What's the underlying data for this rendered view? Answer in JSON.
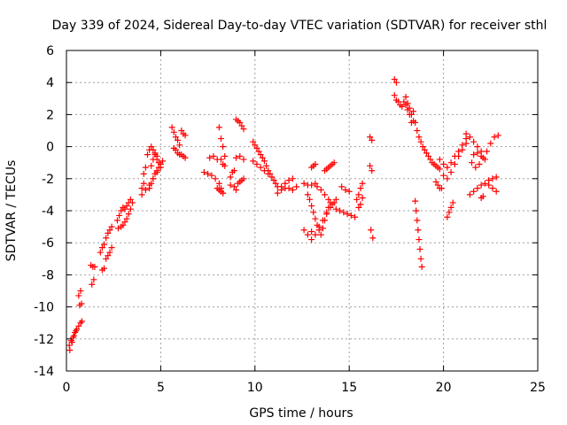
{
  "chart_data": {
    "type": "scatter",
    "title": "Day 339 of 2024, Sidereal Day-to-day VTEC variation (SDTVAR) for receiver sthl",
    "xlabel": "GPS time / hours",
    "ylabel": "SDTVAR / TECUs",
    "xlim": [
      0,
      25
    ],
    "ylim": [
      -14,
      6
    ],
    "xticks": [
      0,
      5,
      10,
      15,
      20,
      25
    ],
    "yticks": [
      -14,
      -12,
      -10,
      -8,
      -6,
      -4,
      -2,
      0,
      2,
      4,
      6
    ],
    "grid": true,
    "marker": "+",
    "color": "#ff0000",
    "series": [
      {
        "name": "SDTVAR",
        "segments": [
          {
            "x": [
              0.15,
              0.25,
              0.35,
              0.45,
              0.55,
              0.65,
              0.75,
              0.82
            ],
            "y": [
              -12.4,
              -12.1,
              -11.9,
              -11.6,
              -11.4,
              -11.2,
              -11.0,
              -10.9
            ]
          },
          {
            "x": [
              0.18,
              0.3,
              0.4,
              0.5
            ],
            "y": [
              -12.7,
              -12.2,
              -11.8,
              -11.5
            ]
          },
          {
            "x": [
              0.65,
              0.75
            ],
            "y": [
              -9.3,
              -9.0
            ]
          },
          {
            "x": [
              0.7,
              0.8
            ],
            "y": [
              -9.9,
              -9.8
            ]
          },
          {
            "x": [
              1.3,
              1.4,
              1.5
            ],
            "y": [
              -7.4,
              -7.5,
              -7.5
            ]
          },
          {
            "x": [
              1.35,
              1.45
            ],
            "y": [
              -8.6,
              -8.3
            ]
          },
          {
            "x": [
              1.8,
              1.9,
              2.0
            ],
            "y": [
              -6.6,
              -6.3,
              -6.1
            ]
          },
          {
            "x": [
              1.9,
              2.0
            ],
            "y": [
              -7.7,
              -7.6
            ]
          },
          {
            "x": [
              2.1,
              2.2,
              2.3,
              2.4
            ],
            "y": [
              -7.0,
              -6.8,
              -6.6,
              -6.3
            ]
          },
          {
            "x": [
              2.1,
              2.2,
              2.3,
              2.4
            ],
            "y": [
              -5.7,
              -5.4,
              -5.2,
              -5.0
            ]
          },
          {
            "x": [
              2.7,
              2.8,
              2.9,
              3.0
            ],
            "y": [
              -4.6,
              -4.3,
              -4.0,
              -3.8
            ]
          },
          {
            "x": [
              2.75,
              2.9,
              3.0,
              3.1,
              3.2,
              3.3,
              3.4,
              3.5
            ],
            "y": [
              -5.1,
              -5.0,
              -4.9,
              -4.7,
              -4.5,
              -4.2,
              -3.9,
              -3.5
            ]
          },
          {
            "x": [
              3.1,
              3.2,
              3.3,
              3.4
            ],
            "y": [
              -3.9,
              -3.7,
              -3.5,
              -3.3
            ]
          },
          {
            "x": [
              4.0,
              4.1,
              4.1,
              4.2
            ],
            "y": [
              -2.6,
              -2.3,
              -1.7,
              -1.3
            ]
          },
          {
            "x": [
              4.0,
              4.2,
              4.4,
              4.6,
              4.8
            ],
            "y": [
              -3.0,
              -2.7,
              -2.4,
              -2.0,
              -1.6
            ]
          },
          {
            "x": [
              4.3,
              4.4,
              4.5,
              4.6,
              4.7,
              4.8
            ],
            "y": [
              -0.5,
              -0.2,
              0.0,
              -0.2,
              -0.4,
              -0.6
            ]
          },
          {
            "x": [
              4.5,
              4.6,
              4.7,
              4.8,
              4.9,
              5.0
            ],
            "y": [
              -1.2,
              -0.8,
              -0.5,
              -0.8,
              -1.0,
              -1.3
            ]
          },
          {
            "x": [
              4.4,
              4.5,
              4.6,
              4.7,
              4.8,
              4.9,
              5.0,
              5.1
            ],
            "y": [
              -2.6,
              -2.3,
              -2.0,
              -1.7,
              -1.5,
              -1.3,
              -1.1,
              -0.9
            ]
          },
          {
            "x": [
              5.6,
              5.7,
              5.8,
              5.9,
              6.0
            ],
            "y": [
              1.2,
              0.9,
              0.6,
              0.4,
              0.1
            ]
          },
          {
            "x": [
              5.7,
              5.8,
              5.9,
              6.0,
              6.1,
              6.2,
              6.3
            ],
            "y": [
              -0.1,
              -0.2,
              -0.4,
              -0.5,
              -0.5,
              -0.6,
              -0.7
            ]
          },
          {
            "x": [
              6.1,
              6.2,
              6.3
            ],
            "y": [
              1.0,
              0.8,
              0.7
            ]
          },
          {
            "x": [
              7.3,
              7.5,
              7.7,
              7.9
            ],
            "y": [
              -1.6,
              -1.7,
              -1.8,
              -2.0
            ]
          },
          {
            "x": [
              7.6,
              7.8,
              8.0
            ],
            "y": [
              -0.7,
              -0.6,
              -0.8
            ]
          },
          {
            "x": [
              8.0,
              8.1,
              8.2,
              8.3
            ],
            "y": [
              -2.6,
              -2.7,
              -2.8,
              -2.9
            ]
          },
          {
            "x": [
              8.1,
              8.2,
              8.3
            ],
            "y": [
              -2.3,
              -2.6,
              -2.9
            ]
          },
          {
            "x": [
              8.1,
              8.2,
              8.3,
              8.4
            ],
            "y": [
              1.2,
              0.5,
              0.0,
              -0.6
            ]
          },
          {
            "x": [
              8.2,
              8.3,
              8.4
            ],
            "y": [
              -0.8,
              -1.1,
              -1.2
            ]
          },
          {
            "x": [
              8.7,
              8.9,
              9.0
            ],
            "y": [
              -2.4,
              -2.5,
              -2.7
            ]
          },
          {
            "x": [
              8.7,
              8.8,
              8.9
            ],
            "y": [
              -1.9,
              -1.6,
              -1.5
            ]
          },
          {
            "x": [
              9.0,
              9.2,
              9.4
            ],
            "y": [
              -0.7,
              -0.6,
              -0.8
            ]
          },
          {
            "x": [
              9.0,
              9.1,
              9.2,
              9.3,
              9.4
            ],
            "y": [
              1.7,
              1.6,
              1.5,
              1.3,
              1.1
            ]
          },
          {
            "x": [
              9.1,
              9.2,
              9.3,
              9.4
            ],
            "y": [
              -2.3,
              -2.2,
              -2.1,
              -2.0
            ]
          },
          {
            "x": [
              9.9,
              10.0,
              10.1,
              10.2,
              10.3,
              10.4,
              10.5,
              10.6,
              10.7,
              10.8,
              10.9,
              11.0,
              11.1,
              11.2
            ],
            "y": [
              0.3,
              0.1,
              -0.1,
              -0.3,
              -0.5,
              -0.7,
              -0.9,
              -1.2,
              -1.5,
              -1.7,
              -1.9,
              -2.1,
              -2.3,
              -2.5
            ]
          },
          {
            "x": [
              9.9,
              10.1,
              10.3,
              10.5,
              10.7
            ],
            "y": [
              -0.9,
              -1.1,
              -1.3,
              -1.5,
              -1.7
            ]
          },
          {
            "x": [
              11.2,
              11.4,
              11.6,
              11.8,
              12.0,
              12.2
            ],
            "y": [
              -2.9,
              -2.7,
              -2.6,
              -2.6,
              -2.7,
              -2.5
            ]
          },
          {
            "x": [
              11.4,
              11.6,
              11.8,
              12.0
            ],
            "y": [
              -2.5,
              -2.3,
              -2.1,
              -2.0
            ]
          },
          {
            "x": [
              12.6,
              12.8,
              13.0,
              13.2
            ],
            "y": [
              -2.3,
              -2.4,
              -2.4,
              -2.3
            ]
          },
          {
            "x": [
              12.6,
              12.8,
              13.0
            ],
            "y": [
              -5.2,
              -5.5,
              -5.3
            ]
          },
          {
            "x": [
              12.8,
              12.9,
              13.0,
              13.1,
              13.2,
              13.3,
              13.4,
              13.5,
              13.6,
              13.7,
              13.8,
              13.9,
              14.0
            ],
            "y": [
              -3.0,
              -3.3,
              -3.7,
              -4.1,
              -4.5,
              -4.9,
              -5.2,
              -5.5,
              -5.1,
              -4.6,
              -4.2,
              -3.8,
              -3.5
            ]
          },
          {
            "x": [
              13.0,
              13.2,
              13.4,
              13.6,
              13.8,
              14.0,
              14.2,
              14.3
            ],
            "y": [
              -5.8,
              -5.5,
              -5.0,
              -4.6,
              -4.1,
              -3.8,
              -3.5,
              -3.3
            ]
          },
          {
            "x": [
              13.3,
              13.5,
              13.7,
              13.9,
              14.1,
              14.3
            ],
            "y": [
              -2.5,
              -2.7,
              -3.0,
              -3.3,
              -3.6,
              -3.9
            ]
          },
          {
            "x": [
              13.7,
              13.8,
              13.9,
              14.0,
              14.1,
              14.2
            ],
            "y": [
              -1.5,
              -1.4,
              -1.3,
              -1.2,
              -1.1,
              -1.0
            ]
          },
          {
            "x": [
              13.0,
              13.1,
              13.2
            ],
            "y": [
              -1.3,
              -1.2,
              -1.1
            ]
          },
          {
            "x": [
              14.5,
              14.7,
              14.9,
              15.1,
              15.3
            ],
            "y": [
              -4.0,
              -4.1,
              -4.2,
              -4.3,
              -4.4
            ]
          },
          {
            "x": [
              14.6,
              14.8,
              15.0
            ],
            "y": [
              -2.5,
              -2.7,
              -2.8
            ]
          },
          {
            "x": [
              15.4,
              15.5,
              15.6,
              15.7
            ],
            "y": [
              -3.3,
              -3.0,
              -2.6,
              -2.3
            ]
          },
          {
            "x": [
              15.5,
              15.6,
              15.7
            ],
            "y": [
              -3.8,
              -3.6,
              -3.2
            ]
          },
          {
            "x": [
              16.1,
              16.2
            ],
            "y": [
              0.6,
              0.4
            ]
          },
          {
            "x": [
              16.1,
              16.2
            ],
            "y": [
              -1.2,
              -1.5
            ]
          },
          {
            "x": [
              16.15,
              16.25
            ],
            "y": [
              -5.2,
              -5.7
            ]
          },
          {
            "x": [
              17.4,
              17.5
            ],
            "y": [
              4.2,
              4.0
            ]
          },
          {
            "x": [
              17.4,
              17.5,
              17.6,
              17.7,
              17.8
            ],
            "y": [
              3.2,
              2.9,
              2.8,
              2.6,
              2.5
            ]
          },
          {
            "x": [
              17.9,
              18.0,
              18.1,
              18.2,
              18.3
            ],
            "y": [
              2.8,
              2.6,
              2.3,
              2.0,
              1.5
            ]
          },
          {
            "x": [
              18.0,
              18.1,
              18.2,
              18.3,
              18.4
            ],
            "y": [
              3.1,
              2.7,
              2.4,
              2.0,
              1.6
            ]
          },
          {
            "x": [
              18.4,
              18.5,
              18.6,
              18.7,
              18.8,
              18.9,
              19.0,
              19.1,
              19.2,
              19.3,
              19.4,
              19.5,
              19.6,
              19.7
            ],
            "y": [
              2.2,
              1.5,
              1.0,
              0.6,
              0.3,
              0.0,
              -0.2,
              -0.4,
              -0.6,
              -0.8,
              -1.0,
              -1.1,
              -1.2,
              -1.3
            ]
          },
          {
            "x": [
              18.5,
              18.55,
              18.6,
              18.65,
              18.7,
              18.75,
              18.8,
              18.85
            ],
            "y": [
              -3.4,
              -4.0,
              -4.6,
              -5.2,
              -5.8,
              -6.4,
              -7.0,
              -7.5
            ]
          },
          {
            "x": [
              19.6,
              19.7,
              19.8,
              19.9
            ],
            "y": [
              -2.2,
              -2.4,
              -2.6,
              -2.6
            ]
          },
          {
            "x": [
              19.8,
              20.0,
              20.2,
              20.4,
              20.6,
              20.8,
              21.0,
              21.2
            ],
            "y": [
              -1.4,
              -1.8,
              -2.0,
              -1.6,
              -1.1,
              -0.6,
              -0.2,
              0.2
            ]
          },
          {
            "x": [
              19.8,
              20.0,
              20.2,
              20.4,
              20.6,
              20.8,
              21.0,
              21.2
            ],
            "y": [
              -0.8,
              -1.1,
              -1.3,
              -1.0,
              -0.6,
              -0.3,
              0.1,
              0.5
            ]
          },
          {
            "x": [
              20.2,
              20.3,
              20.4,
              20.5
            ],
            "y": [
              -4.4,
              -4.1,
              -3.8,
              -3.5
            ]
          },
          {
            "x": [
              21.2,
              21.4,
              21.6,
              21.8,
              22.0
            ],
            "y": [
              0.8,
              0.6,
              0.3,
              0.0,
              -0.3
            ]
          },
          {
            "x": [
              21.5,
              21.7,
              21.9,
              22.1,
              22.3,
              22.5,
              22.7,
              22.9
            ],
            "y": [
              -1.0,
              -1.3,
              -1.1,
              -0.7,
              -0.3,
              0.2,
              0.6,
              0.7
            ]
          },
          {
            "x": [
              21.4,
              21.6,
              21.8,
              22.0,
              22.2,
              22.4,
              22.6,
              22.8
            ],
            "y": [
              -3.0,
              -2.8,
              -2.6,
              -2.4,
              -2.3,
              -2.1,
              -2.0,
              -1.9
            ]
          },
          {
            "x": [
              21.6,
              21.8,
              22.0,
              22.2
            ],
            "y": [
              -0.5,
              -0.4,
              -0.6,
              -0.8
            ]
          },
          {
            "x": [
              22.4,
              22.6,
              22.8
            ],
            "y": [
              -2.4,
              -2.6,
              -2.8
            ]
          },
          {
            "x": [
              22.0,
              22.1
            ],
            "y": [
              -3.2,
              -3.1
            ]
          }
        ]
      }
    ]
  }
}
